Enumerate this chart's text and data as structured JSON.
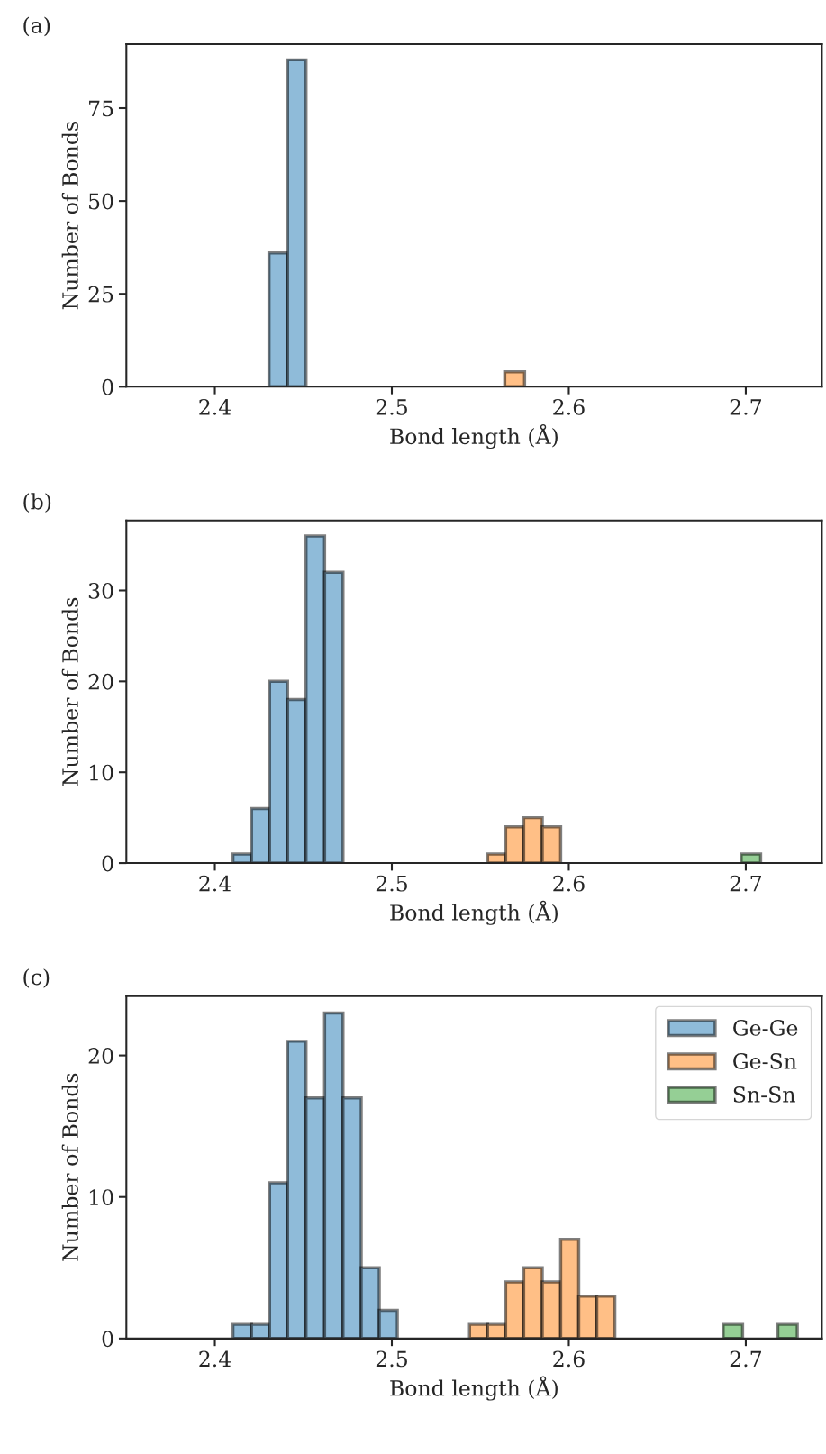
{
  "chart_data": [
    {
      "type": "histogram",
      "xlabel": "Bond length (Å)",
      "ylabel": "Number of Bonds",
      "annotations": [
        "(a)"
      ],
      "xlim": [
        2.35,
        2.743
      ],
      "xticks": [
        2.4,
        2.5,
        2.6,
        2.7
      ],
      "ylim": [
        0,
        92.2
      ],
      "yticks": [
        0,
        25,
        50,
        75
      ],
      "grid": false,
      "legend": false,
      "bins": [
        2.4306,
        2.4411,
        2.4515,
        2.5638,
        2.575
      ],
      "series": [
        {
          "color": "#8fbbd9",
          "values": [
            36,
            88,
            null,
            null
          ]
        },
        {
          "color": "#ffbf86",
          "values": [
            null,
            null,
            null,
            4
          ]
        }
      ]
    },
    {
      "type": "histogram",
      "xlabel": "Bond length (Å)",
      "ylabel": "Number of Bonds",
      "annotations": [
        "(b)"
      ],
      "xlim": [
        2.35,
        2.743
      ],
      "xticks": [
        2.4,
        2.5,
        2.6,
        2.7
      ],
      "ylim": [
        0,
        37.7
      ],
      "yticks": [
        0,
        10,
        20,
        30
      ],
      "grid": false,
      "legend": false,
      "bins": [
        2.4102,
        2.4207,
        2.4309,
        2.4411,
        2.4515,
        2.462,
        2.4724,
        2.5541,
        2.5643,
        2.5745,
        2.585,
        2.5954,
        2.6974,
        2.7084
      ],
      "series": [
        {
          "color": "#8fbbd9",
          "values": [
            1,
            6,
            20,
            18,
            36,
            32,
            null,
            null,
            null,
            null,
            null,
            null,
            null
          ]
        },
        {
          "color": "#ffbf86",
          "values": [
            null,
            null,
            null,
            null,
            null,
            null,
            null,
            1,
            4,
            5,
            4,
            null,
            null
          ]
        },
        {
          "color": "#95cf95",
          "values": [
            null,
            null,
            null,
            null,
            null,
            null,
            null,
            null,
            null,
            null,
            null,
            null,
            1
          ]
        }
      ]
    },
    {
      "type": "histogram",
      "xlabel": "Bond length (Å)",
      "ylabel": "Number of Bonds",
      "annotations": [
        "(c)"
      ],
      "xlim": [
        2.35,
        2.743
      ],
      "xticks": [
        2.4,
        2.5,
        2.6,
        2.7
      ],
      "ylim": [
        0,
        24.2
      ],
      "yticks": [
        0,
        10,
        20
      ],
      "grid": false,
      "legend": "top right",
      "bins": [
        2.4102,
        2.4207,
        2.4309,
        2.4411,
        2.4515,
        2.462,
        2.4724,
        2.4827,
        2.4929,
        2.5031,
        2.5439,
        2.5541,
        2.5643,
        2.5745,
        2.585,
        2.5954,
        2.6056,
        2.6158,
        2.626,
        2.6872,
        2.6982,
        2.7181,
        2.7291
      ],
      "series": [
        {
          "name": "Ge-Ge",
          "color": "#8fbbd9",
          "values": [
            1,
            1,
            11,
            21,
            17,
            23,
            17,
            5,
            2,
            null,
            null,
            null,
            null,
            null,
            null,
            null,
            null,
            null,
            null,
            null,
            null,
            null
          ]
        },
        {
          "name": "Ge-Sn",
          "color": "#ffbf86",
          "values": [
            null,
            null,
            null,
            null,
            null,
            null,
            null,
            null,
            null,
            null,
            1,
            1,
            4,
            5,
            4,
            7,
            3,
            3,
            null,
            null,
            null,
            null
          ]
        },
        {
          "name": "Sn-Sn",
          "color": "#95cf95",
          "values": [
            null,
            null,
            null,
            null,
            null,
            null,
            null,
            null,
            null,
            null,
            null,
            null,
            null,
            null,
            null,
            null,
            null,
            null,
            null,
            1,
            null,
            1
          ]
        }
      ]
    }
  ]
}
